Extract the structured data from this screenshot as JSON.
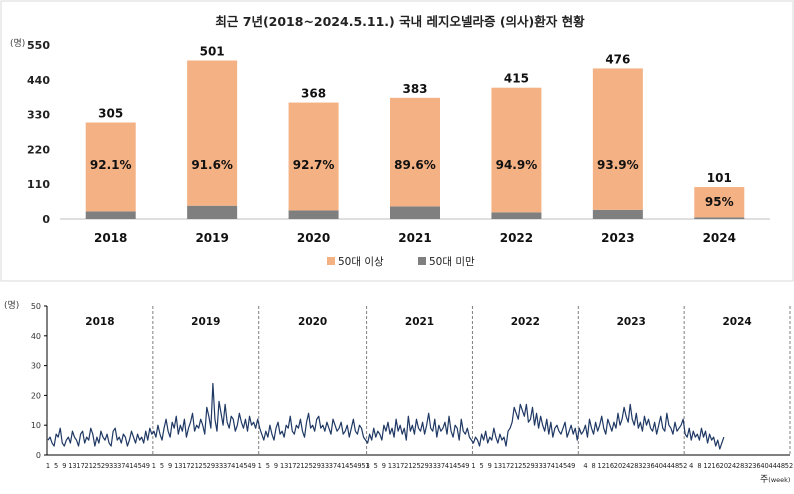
{
  "colors": {
    "over50": "#f4b183",
    "under50": "#7f7f7f",
    "line": "#1f3864",
    "axis": "#000000",
    "border": "#d9d9d9",
    "divider": "#7f7f7f"
  },
  "top_panel": {
    "title": "최근 7년(2018~2024.5.11.) 국내 레지오넬라증 (의사)환자 현황",
    "unit": "(명)"
  },
  "bottom_panel": {
    "unit": "(명)",
    "x_unit_main": "주",
    "x_unit_sub": "(week)"
  },
  "chart_data": [
    {
      "type": "bar",
      "stacked": true,
      "title": "최근 7년(2018~2024.5.11.) 국내 레지오넬라증 (의사)환자 현황",
      "ylabel": "(명)",
      "ylim": [
        0,
        550
      ],
      "yticks": [
        0,
        110,
        220,
        330,
        440,
        550
      ],
      "categories": [
        "2018",
        "2019",
        "2020",
        "2021",
        "2022",
        "2023",
        "2024"
      ],
      "totals": [
        305,
        501,
        368,
        383,
        415,
        476,
        101
      ],
      "percent_labels": [
        "92.1%",
        "91.6%",
        "92.7%",
        "89.6%",
        "94.9%",
        "93.9%",
        "95%"
      ],
      "series": [
        {
          "name": "50대 이상",
          "color": "#f4b183",
          "values": [
            281,
            459,
            341,
            343,
            394,
            447,
            96
          ]
        },
        {
          "name": "50대 미만",
          "color": "#7f7f7f",
          "values": [
            24,
            42,
            27,
            40,
            21,
            29,
            5
          ]
        }
      ],
      "legend_position": "bottom",
      "grid": false
    },
    {
      "type": "line",
      "ylabel": "(명)",
      "ylim": [
        0,
        50
      ],
      "yticks": [
        0,
        10,
        20,
        30,
        40,
        50
      ],
      "xlabel": "주(week)",
      "grid": false,
      "years": [
        {
          "label": "2018",
          "weeks": 52
        },
        {
          "label": "2019",
          "weeks": 52
        },
        {
          "label": "2020",
          "weeks": 53
        },
        {
          "label": "2021",
          "weeks": 52
        },
        {
          "label": "2022",
          "weeks": 52
        },
        {
          "label": "2023",
          "weeks": 52
        },
        {
          "label": "2024",
          "weeks": 52
        }
      ],
      "xtick_labels": [
        [
          "1",
          "5",
          "9",
          "13",
          "17",
          "21",
          "25",
          "29",
          "33",
          "37",
          "41",
          "45",
          "49"
        ],
        [
          "1",
          "5",
          "9",
          "13",
          "17",
          "21",
          "25",
          "29",
          "33",
          "37",
          "41",
          "45",
          "49"
        ],
        [
          "1",
          "5",
          "9",
          "13",
          "17",
          "21",
          "25",
          "29",
          "33",
          "37",
          "41",
          "45",
          "49",
          "53"
        ],
        [
          "1",
          "5",
          "9",
          "13",
          "17",
          "21",
          "25",
          "29",
          "33",
          "37",
          "41",
          "45",
          "49"
        ],
        [
          "1",
          "5",
          "9",
          "13",
          "17",
          "21",
          "25",
          "29",
          "33",
          "37",
          "41",
          "45",
          "49"
        ],
        [
          "4",
          "8",
          "12",
          "16",
          "20",
          "24",
          "28",
          "32",
          "36",
          "40",
          "44",
          "48",
          "52"
        ],
        [
          "4",
          "8",
          "12",
          "16",
          "20",
          "24",
          "28",
          "32",
          "36",
          "40",
          "44",
          "48",
          "52"
        ]
      ],
      "series": [
        {
          "color": "#1f3864",
          "values": [
            5,
            6,
            4,
            3,
            7,
            6,
            9,
            4,
            3,
            5,
            6,
            4,
            8,
            6,
            5,
            3,
            7,
            8,
            4,
            6,
            5,
            9,
            7,
            3,
            6,
            4,
            8,
            6,
            5,
            7,
            4,
            3,
            8,
            9,
            5,
            6,
            4,
            7,
            6,
            3,
            5,
            8,
            6,
            4,
            7,
            5,
            6,
            4,
            8,
            5,
            9,
            7,
            8,
            6,
            10,
            7,
            5,
            9,
            12,
            8,
            6,
            11,
            9,
            13,
            7,
            10,
            8,
            12,
            6,
            9,
            11,
            14,
            8,
            10,
            9,
            12,
            10,
            7,
            16,
            13,
            9,
            24,
            12,
            8,
            18,
            14,
            10,
            17,
            11,
            9,
            13,
            12,
            8,
            10,
            14,
            11,
            9,
            12,
            8,
            13,
            10,
            11,
            9,
            12,
            9,
            7,
            5,
            8,
            6,
            10,
            7,
            5,
            9,
            11,
            7,
            8,
            6,
            10,
            9,
            13,
            8,
            7,
            10,
            9,
            12,
            8,
            6,
            11,
            14,
            9,
            10,
            8,
            12,
            13,
            9,
            10,
            8,
            11,
            9,
            7,
            12,
            10,
            8,
            9,
            11,
            7,
            8,
            10,
            6,
            9,
            12,
            8,
            7,
            10,
            9,
            6,
            5,
            4,
            7,
            5,
            9,
            6,
            8,
            7,
            5,
            10,
            8,
            11,
            7,
            9,
            6,
            12,
            8,
            10,
            7,
            9,
            5,
            13,
            8,
            10,
            7,
            12,
            9,
            8,
            11,
            7,
            10,
            14,
            9,
            8,
            12,
            6,
            10,
            8,
            9,
            11,
            7,
            13,
            8,
            6,
            10,
            9,
            5,
            12,
            8,
            7,
            9,
            6,
            5,
            4,
            6,
            5,
            3,
            7,
            5,
            8,
            4,
            6,
            5,
            9,
            6,
            4,
            7,
            5,
            6,
            3,
            8,
            9,
            11,
            16,
            14,
            12,
            17,
            15,
            13,
            17,
            11,
            12,
            16,
            10,
            14,
            9,
            13,
            10,
            8,
            12,
            7,
            11,
            6,
            9,
            10,
            8,
            7,
            9,
            11,
            6,
            8,
            10,
            7,
            9,
            5,
            9,
            7,
            8,
            10,
            6,
            12,
            9,
            7,
            11,
            8,
            10,
            13,
            9,
            7,
            12,
            10,
            8,
            11,
            9,
            14,
            10,
            12,
            16,
            13,
            11,
            17,
            12,
            10,
            14,
            9,
            11,
            8,
            13,
            10,
            12,
            9,
            8,
            11,
            7,
            10,
            13,
            9,
            8,
            14,
            10,
            9,
            7,
            11,
            8,
            9,
            10,
            12,
            7,
            6,
            9,
            5,
            8,
            6,
            7,
            5,
            9,
            6,
            8,
            4,
            7,
            5,
            6,
            3,
            5,
            2,
            4,
            6
          ]
        }
      ]
    }
  ]
}
